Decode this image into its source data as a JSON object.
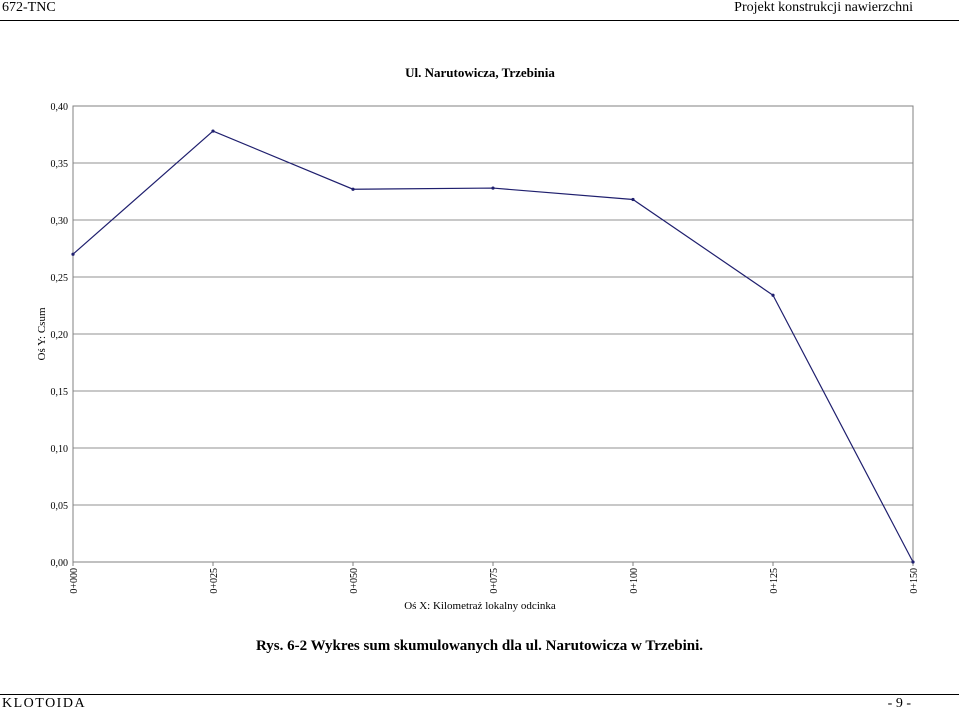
{
  "header": {
    "left": "672-TNC",
    "right": "Projekt konstrukcji nawierzchni"
  },
  "chart_data": {
    "type": "line",
    "title": "Ul. Narutowicza, Trzebinia",
    "xlabel": "Oś X: Kilometraż lokalny odcinka",
    "ylabel": "Oś Y: Csum",
    "categories": [
      "0+000",
      "0+025",
      "0+050",
      "0+075",
      "0+100",
      "0+125",
      "0+150"
    ],
    "series": [
      {
        "values": [
          0.27,
          0.378,
          0.327,
          0.328,
          0.318,
          0.234,
          0.0
        ]
      }
    ],
    "ylim": [
      0,
      0.4
    ],
    "yticks": [
      "0,00",
      "0,05",
      "0,10",
      "0,15",
      "0,20",
      "0,25",
      "0,30",
      "0,35",
      "0,40"
    ],
    "grid": true,
    "legend": "none",
    "line_color": "#1f1f6e"
  },
  "caption": "Rys. 6-2 Wykres sum skumulowanych dla ul. Narutowicza w Trzebini.",
  "footer": {
    "left": "KLOTOIDA",
    "right": "- 9 -"
  }
}
